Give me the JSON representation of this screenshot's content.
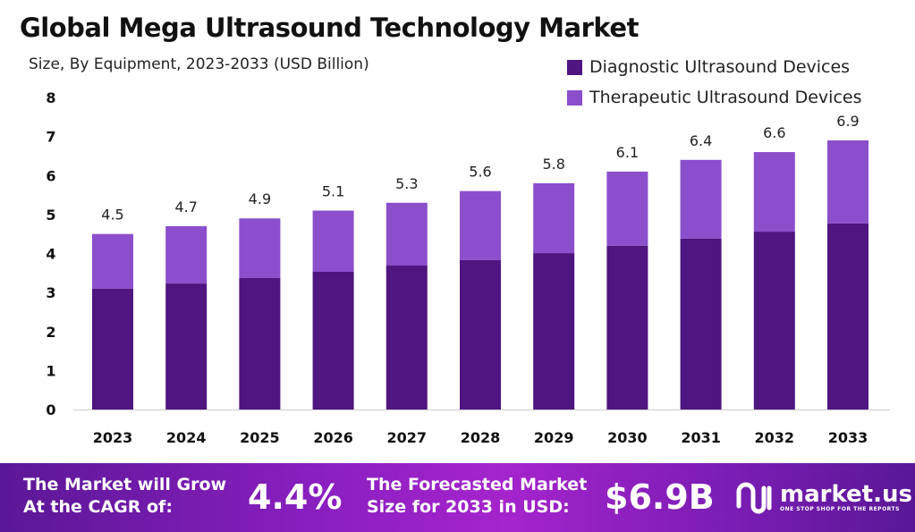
{
  "chart_data": {
    "type": "bar",
    "stacked": true,
    "title": "Global Mega Ultrasound Technology Market",
    "subtitle": "Size, By Equipment, 2023-2033 (USD Billion)",
    "categories": [
      "2023",
      "2024",
      "2025",
      "2026",
      "2027",
      "2028",
      "2029",
      "2030",
      "2031",
      "2032",
      "2033"
    ],
    "series": [
      {
        "name": "Diagnostic Ultrasound Devices",
        "color": "#4f1580",
        "values": [
          3.1,
          3.23,
          3.37,
          3.53,
          3.69,
          3.83,
          4.01,
          4.2,
          4.38,
          4.56,
          4.77
        ]
      },
      {
        "name": "Therapeutic Ultrasound Devices",
        "color": "#8b4fcc",
        "values": [
          1.4,
          1.47,
          1.53,
          1.57,
          1.61,
          1.77,
          1.79,
          1.9,
          2.02,
          2.04,
          2.13
        ]
      }
    ],
    "totals": [
      "4.5",
      "4.7",
      "4.9",
      "5.1",
      "5.3",
      "5.6",
      "5.8",
      "6.1",
      "6.4",
      "6.6",
      "6.9"
    ],
    "yticks": [
      "0",
      "1",
      "2",
      "3",
      "4",
      "5",
      "6",
      "7",
      "8"
    ],
    "ylim": [
      0,
      8
    ],
    "grid": false,
    "legend_position": "top-right"
  },
  "banner": {
    "cagr_text_1": "The Market will Grow",
    "cagr_text_2": "At the CAGR of:",
    "cagr_value": "4.4%",
    "size_text_1": "The Forecasted Market",
    "size_text_2": "Size for 2033 in USD:",
    "size_value": "$6.9B",
    "logo_name": "market.us",
    "logo_tagline": "ONE STOP SHOP FOR THE REPORTS"
  }
}
